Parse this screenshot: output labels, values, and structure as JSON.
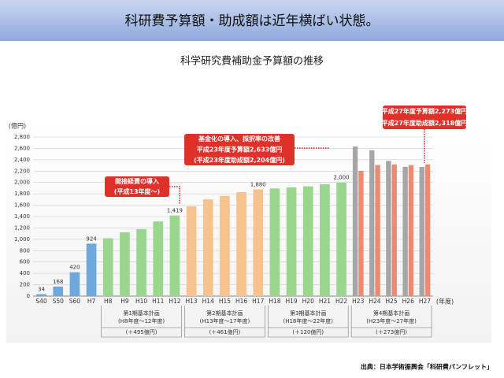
{
  "header": {
    "title": "科研費予算額・助成額は近年横ばい状態。"
  },
  "chart_data": {
    "type": "bar",
    "title": "科学研究費補助金予算額の推移",
    "y_axis_label": "(億円)",
    "x_axis_label": "(年度)",
    "categories": [
      "S40",
      "S50",
      "S60",
      "H7",
      "H8",
      "H9",
      "H10",
      "H11",
      "H12",
      "H13",
      "H14",
      "H15",
      "H16",
      "H17",
      "H18",
      "H19",
      "H20",
      "H21",
      "H22",
      "H23",
      "H24",
      "H25",
      "H26",
      "H27"
    ],
    "series": [
      {
        "name": "予算額",
        "colors": [
          "#6fa8dc",
          "#6fa8dc",
          "#6fa8dc",
          "#6fa8dc",
          "#9ad68e",
          "#9ad68e",
          "#9ad68e",
          "#9ad68e",
          "#9ad68e",
          "#f6c38e",
          "#f6c38e",
          "#f6c38e",
          "#f6c38e",
          "#f6c38e",
          "#9ad68e",
          "#9ad68e",
          "#9ad68e",
          "#9ad68e",
          "#9ad68e",
          "#a6a6a6",
          "#a6a6a6",
          "#a6a6a6",
          "#a6a6a6",
          "#a6a6a6"
        ],
        "values": [
          34,
          168,
          420,
          924,
          1018,
          1122,
          1179,
          1314,
          1419,
          1580,
          1703,
          1765,
          1830,
          1880,
          1895,
          1913,
          1932,
          1970,
          2000,
          2633,
          2566,
          2381,
          2276,
          2273
        ],
        "value_labels": [
          "34",
          "168",
          "420",
          "924",
          null,
          null,
          null,
          null,
          "1,419",
          null,
          null,
          null,
          null,
          "1,880",
          null,
          null,
          null,
          null,
          "2,000",
          null,
          null,
          null,
          null,
          null
        ]
      },
      {
        "name": "助成額",
        "color": "#ec8a72",
        "values": [
          null,
          null,
          null,
          null,
          null,
          null,
          null,
          null,
          null,
          null,
          null,
          null,
          null,
          null,
          null,
          null,
          null,
          null,
          null,
          2204,
          2307,
          2318,
          2305,
          2318
        ]
      }
    ],
    "ylim": [
      0,
      2800
    ],
    "yticks": [
      0,
      200,
      400,
      600,
      800,
      {
        "value": 1000,
        "label": "1,000"
      },
      {
        "value": 1200,
        "label": "1,200"
      },
      {
        "value": 1400,
        "label": "1,400"
      },
      {
        "value": 1600,
        "label": "1,600"
      },
      {
        "value": 1800,
        "label": "1,800"
      },
      {
        "value": 2000,
        "label": "2,000"
      },
      {
        "value": 2200,
        "label": "2,200"
      },
      {
        "value": 2400,
        "label": "2,400"
      },
      {
        "value": 2600,
        "label": "2,600"
      },
      {
        "value": 2800,
        "label": "2,800"
      }
    ],
    "grid": true,
    "periods": [
      {
        "name": "第1期基本計画",
        "range": "(H8年度〜12年度)",
        "increase": "(＋495億円)"
      },
      {
        "name": "第2期基本計画",
        "range": "(H13年度〜17年度)",
        "increase": "(＋461億円)"
      },
      {
        "name": "第3期基本計画",
        "range": "(H18年度〜22年度)",
        "increase": "(＋120億円)"
      },
      {
        "name": "第4期基本計画",
        "range": "(H23年度〜27年度)",
        "increase": "(＋273億円)"
      }
    ],
    "annotations": [
      [
        "間接経費の導入",
        "(平成13年度〜)"
      ],
      [
        "基金化の導入、採択率の改善",
        "平成23年度予算額2,633億円",
        "(平成23年度助成額2,204億円)"
      ],
      [
        "平成27年度予算額2,273億円",
        "(平成27年度助成額2,318億円)"
      ]
    ]
  },
  "source": "出典：日本学術振興会「科研費パンフレット」"
}
